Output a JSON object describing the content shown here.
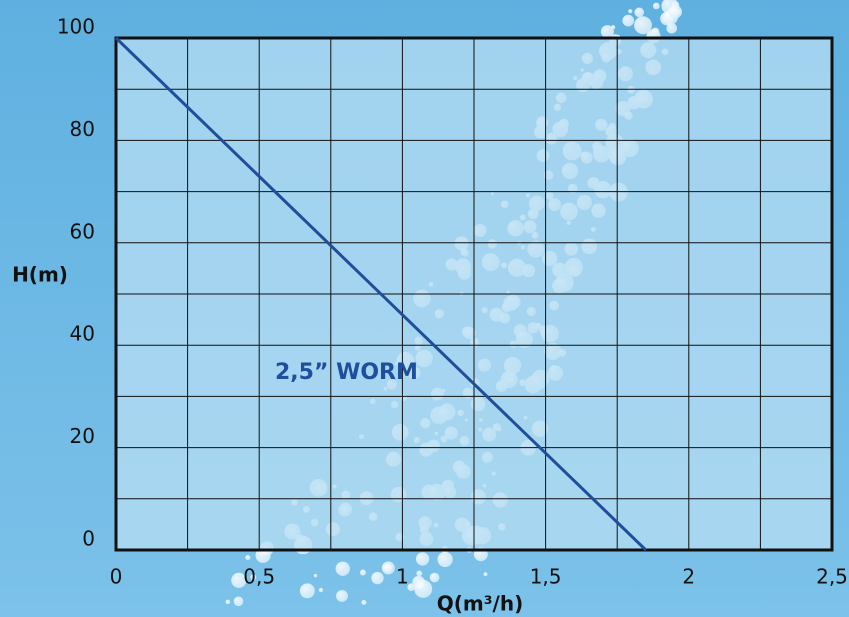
{
  "chart_data": {
    "type": "line",
    "x": [
      0,
      1.85
    ],
    "series": [
      {
        "name": "2,5” WORM",
        "color": "#1f4e9c",
        "values": [
          100,
          0
        ]
      }
    ],
    "xlabel": "Q(m³/h)",
    "ylabel": "H(m)",
    "xlim": [
      0,
      2.5
    ],
    "ylim": [
      0,
      100
    ],
    "xticks": [
      0,
      {
        "value": 0.5,
        "label": "0,5"
      },
      1,
      {
        "value": 1.5,
        "label": "1,5"
      },
      2,
      {
        "value": 2.5,
        "label": "2,5"
      }
    ],
    "yticks": [
      0,
      20,
      40,
      60,
      80,
      100
    ],
    "xgrid": [
      0.25,
      0.75,
      1.25,
      1.75,
      2.25
    ],
    "ygrid": [
      10,
      30,
      50,
      70,
      90
    ],
    "grid": true
  }
}
